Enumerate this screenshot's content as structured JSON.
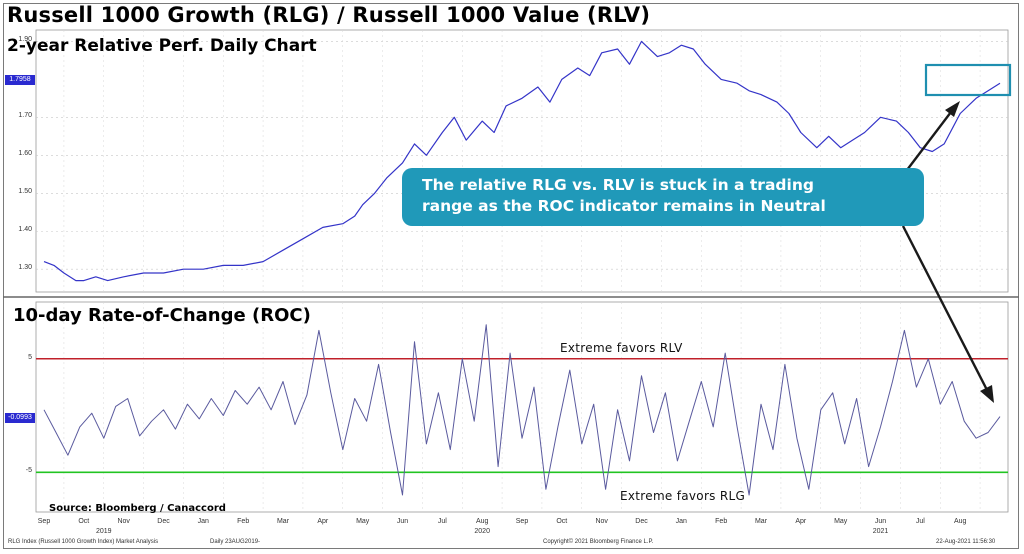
{
  "title": "Russell 1000 Growth (RLG) / Russell 1000 Value (RLV)",
  "subtitle": "2-year Relative Perf. Daily Chart",
  "callout": {
    "line1": "The relative RLG vs. RLV is stuck in a trading",
    "line2": "range as the ROC indicator remains in Neutral"
  },
  "source": "Source: Bloomberg / Canaccord",
  "footer": {
    "left": "RLG Index (Russell 1000 Growth Index) Market Analysis",
    "daily": "Daily 23AUG2019-",
    "copyright": "Copyright© 2021 Bloomberg Finance L.P.",
    "timestamp": "22-Aug-2021 11:56:30"
  },
  "colors": {
    "price_line": "#3434c8",
    "roc_line": "#5a5a9e",
    "upper_band": "#c0202a",
    "lower_band": "#22c422",
    "highlight_box": "#1f8fb0",
    "callout_bg": "#2099b9",
    "value_tag": "#2a2ad0"
  },
  "chart_data": [
    {
      "type": "line",
      "title": "Russell 1000 Growth (RLG) / Russell 1000 Value (RLV)",
      "subtitle": "2-year Relative Perf. Daily Chart",
      "ylim": [
        1.24,
        1.93
      ],
      "ytick_labels": [
        "1.30",
        "1.40",
        "1.50",
        "1.60",
        "1.70",
        "1.90"
      ],
      "last_value_tag": "1.7958",
      "grid": true,
      "series": [
        {
          "x": [
            0,
            0.25,
            0.5,
            0.8,
            1.0,
            1.3,
            1.6,
            2.0,
            2.5,
            3.0,
            3.5,
            4.0,
            4.5,
            5.0,
            5.5,
            6.0,
            6.5,
            7.0,
            7.5,
            7.8,
            8.0,
            8.3,
            8.6,
            9.0,
            9.3,
            9.6,
            10.0,
            10.3,
            10.6,
            11.0,
            11.3,
            11.6,
            12.0,
            12.4,
            12.7,
            13.0,
            13.4,
            13.7,
            14.0,
            14.4,
            14.7,
            15.0,
            15.4,
            15.7,
            16.0,
            16.3,
            16.6,
            17.0,
            17.4,
            17.7,
            18.0,
            18.4,
            18.7,
            19.0,
            19.4,
            19.7,
            20.0,
            20.3,
            20.6,
            21.0,
            21.4,
            21.7,
            22.0,
            22.3,
            22.6,
            23.0,
            23.4,
            23.7,
            24.0
          ],
          "values": [
            1.32,
            1.31,
            1.29,
            1.27,
            1.27,
            1.28,
            1.27,
            1.28,
            1.29,
            1.29,
            1.3,
            1.3,
            1.31,
            1.31,
            1.32,
            1.35,
            1.38,
            1.41,
            1.42,
            1.44,
            1.47,
            1.5,
            1.54,
            1.58,
            1.63,
            1.6,
            1.66,
            1.7,
            1.64,
            1.69,
            1.66,
            1.73,
            1.75,
            1.78,
            1.74,
            1.8,
            1.83,
            1.81,
            1.87,
            1.88,
            1.84,
            1.9,
            1.86,
            1.87,
            1.89,
            1.88,
            1.84,
            1.8,
            1.79,
            1.77,
            1.76,
            1.74,
            1.71,
            1.66,
            1.62,
            1.65,
            1.62,
            1.64,
            1.66,
            1.7,
            1.69,
            1.66,
            1.62,
            1.61,
            1.63,
            1.71,
            1.75,
            1.77,
            1.79
          ]
        }
      ]
    },
    {
      "type": "line",
      "title": "10-day Rate-of-Change (ROC)",
      "ylim": [
        -8.5,
        10
      ],
      "ytick_labels": [
        "5",
        "-5"
      ],
      "last_value_tag": "-0.0993",
      "bands": [
        {
          "value": 5,
          "label": "Extreme  favors RLV"
        },
        {
          "value": -5,
          "label": "Extreme  favors RLG"
        }
      ],
      "x_labels": [
        "Sep",
        "Oct",
        "Nov",
        "Dec",
        "Jan",
        "Feb",
        "Mar",
        "Apr",
        "May",
        "Jun",
        "Jul",
        "Aug",
        "Sep",
        "Oct",
        "Nov",
        "Dec",
        "Jan",
        "Feb",
        "Mar",
        "Apr",
        "May",
        "Jun",
        "Jul",
        "Aug"
      ],
      "year_labels": [
        "2019",
        "2020",
        "2021"
      ],
      "series": [
        {
          "x": [
            0,
            0.3,
            0.6,
            0.9,
            1.2,
            1.5,
            1.8,
            2.1,
            2.4,
            2.7,
            3.0,
            3.3,
            3.6,
            3.9,
            4.2,
            4.5,
            4.8,
            5.1,
            5.4,
            5.7,
            6.0,
            6.3,
            6.6,
            6.9,
            7.2,
            7.5,
            7.8,
            8.1,
            8.4,
            8.7,
            9.0,
            9.3,
            9.6,
            9.9,
            10.2,
            10.5,
            10.8,
            11.1,
            11.4,
            11.7,
            12.0,
            12.3,
            12.6,
            12.9,
            13.2,
            13.5,
            13.8,
            14.1,
            14.4,
            14.7,
            15.0,
            15.3,
            15.6,
            15.9,
            16.2,
            16.5,
            16.8,
            17.1,
            17.4,
            17.7,
            18.0,
            18.3,
            18.6,
            18.9,
            19.2,
            19.5,
            19.8,
            20.1,
            20.4,
            20.7,
            21.0,
            21.3,
            21.6,
            21.9,
            22.2,
            22.5,
            22.8,
            23.1,
            23.4,
            23.7,
            24.0
          ],
          "values": [
            0.5,
            -1.5,
            -3.5,
            -1.0,
            0.2,
            -2.0,
            0.8,
            1.5,
            -1.8,
            -0.5,
            0.5,
            -1.2,
            1.0,
            -0.3,
            1.5,
            0.0,
            2.2,
            1.0,
            2.5,
            0.5,
            3.0,
            -0.8,
            1.8,
            7.5,
            2.0,
            -3.0,
            1.5,
            -0.5,
            4.5,
            -1.5,
            -7.0,
            6.5,
            -2.5,
            2.0,
            -3.0,
            5.0,
            -0.5,
            8.0,
            -4.5,
            5.5,
            -2.0,
            2.5,
            -6.5,
            -1.0,
            4.0,
            -2.5,
            1.0,
            -6.5,
            0.5,
            -4.0,
            3.5,
            -1.5,
            2.0,
            -4.0,
            -0.5,
            3.0,
            -1.0,
            5.5,
            -1.0,
            -7.0,
            1.0,
            -3.0,
            4.5,
            -2.0,
            -6.5,
            0.5,
            2.0,
            -2.5,
            1.5,
            -4.5,
            -1.0,
            3.0,
            7.5,
            2.5,
            5.0,
            1.0,
            3.0,
            -0.5,
            -2.0,
            -1.5,
            -0.1
          ]
        }
      ]
    }
  ]
}
